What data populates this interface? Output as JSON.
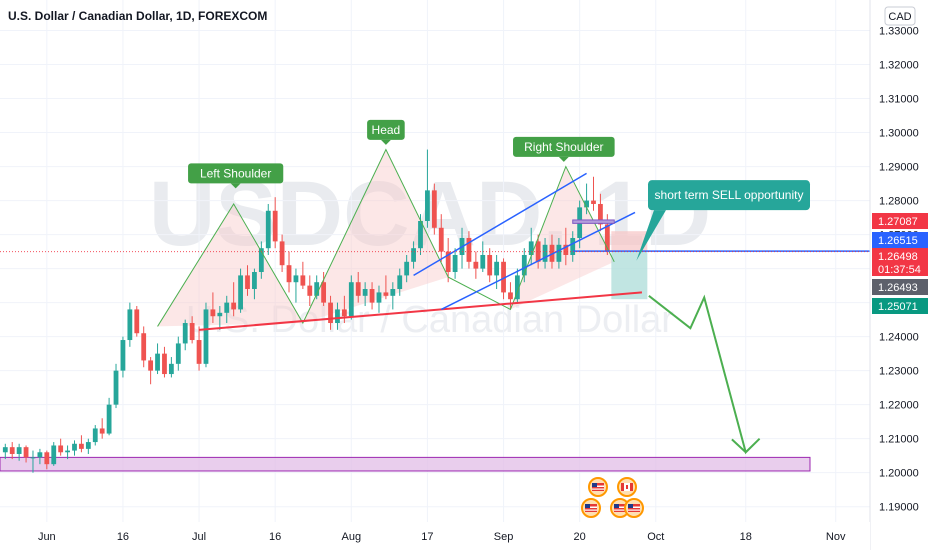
{
  "header": {
    "title": "U.S. Dollar / Canadian Dollar, 1D, FOREXCOM"
  },
  "watermark": {
    "symbol": "USDCAD, 1D",
    "name": "U.S. Dollar / Canadian Dollar"
  },
  "currency_badge": "CAD",
  "colors": {
    "up": "#26a69a",
    "down": "#ef5350",
    "pattern_line": "#4caf50",
    "neckline": "#f23645",
    "channel": "#2962ff",
    "zone_fill": "#e1bee7",
    "zone_border": "#9c27b0",
    "label_bg": "#43a047",
    "callout_bg": "#26a69a"
  },
  "chart_data": {
    "type": "candlestick",
    "symbol": "USDCAD",
    "interval": "1D",
    "ylim": [
      1.1855,
      1.3375
    ],
    "y_ticks": [
      "1.33000",
      "1.32000",
      "1.31000",
      "1.30000",
      "1.29000",
      "1.28000",
      "1.27000",
      "1.26000",
      "1.25000",
      "1.24000",
      "1.23000",
      "1.22000",
      "1.21000",
      "1.20000",
      "1.19000"
    ],
    "x_ticks": [
      {
        "label": "Jun",
        "bar": 6
      },
      {
        "label": "16",
        "bar": 17
      },
      {
        "label": "Jul",
        "bar": 28
      },
      {
        "label": "16",
        "bar": 39
      },
      {
        "label": "Aug",
        "bar": 50
      },
      {
        "label": "17",
        "bar": 61
      },
      {
        "label": "Sep",
        "bar": 72
      },
      {
        "label": "20",
        "bar": 83
      },
      {
        "label": "Oct",
        "bar": 94
      },
      {
        "label": "18",
        "bar": 107
      },
      {
        "label": "Nov",
        "bar": 120
      }
    ],
    "candles": [
      [
        1.206,
        1.2085,
        1.204,
        1.2075
      ],
      [
        1.2075,
        1.209,
        1.204,
        1.2055
      ],
      [
        1.2055,
        1.2085,
        1.2035,
        1.2075
      ],
      [
        1.2075,
        1.208,
        1.203,
        1.2045
      ],
      [
        1.2045,
        1.2065,
        1.2,
        1.2045
      ],
      [
        1.2045,
        1.207,
        1.2025,
        1.206
      ],
      [
        1.206,
        1.2065,
        1.201,
        1.2025
      ],
      [
        1.2025,
        1.209,
        1.202,
        1.208
      ],
      [
        1.208,
        1.21,
        1.205,
        1.206
      ],
      [
        1.206,
        1.208,
        1.204,
        1.2065
      ],
      [
        1.2065,
        1.2095,
        1.205,
        1.2085
      ],
      [
        1.2085,
        1.211,
        1.206,
        1.207
      ],
      [
        1.207,
        1.21,
        1.2055,
        1.209
      ],
      [
        1.209,
        1.214,
        1.208,
        1.213
      ],
      [
        1.213,
        1.216,
        1.21,
        1.2115
      ],
      [
        1.2115,
        1.222,
        1.211,
        1.22
      ],
      [
        1.22,
        1.232,
        1.219,
        1.23
      ],
      [
        1.23,
        1.24,
        1.228,
        1.239
      ],
      [
        1.239,
        1.25,
        1.237,
        1.248
      ],
      [
        1.248,
        1.249,
        1.24,
        1.241
      ],
      [
        1.241,
        1.243,
        1.231,
        1.233
      ],
      [
        1.233,
        1.234,
        1.226,
        1.23
      ],
      [
        1.23,
        1.238,
        1.229,
        1.235
      ],
      [
        1.235,
        1.237,
        1.228,
        1.229
      ],
      [
        1.229,
        1.234,
        1.228,
        1.232
      ],
      [
        1.232,
        1.24,
        1.23,
        1.238
      ],
      [
        1.238,
        1.245,
        1.236,
        1.244
      ],
      [
        1.244,
        1.246,
        1.238,
        1.239
      ],
      [
        1.239,
        1.243,
        1.23,
        1.232
      ],
      [
        1.232,
        1.25,
        1.231,
        1.248
      ],
      [
        1.248,
        1.253,
        1.244,
        1.246
      ],
      [
        1.246,
        1.249,
        1.242,
        1.247
      ],
      [
        1.247,
        1.252,
        1.244,
        1.25
      ],
      [
        1.25,
        1.256,
        1.246,
        1.248
      ],
      [
        1.248,
        1.26,
        1.247,
        1.258
      ],
      [
        1.258,
        1.261,
        1.252,
        1.254
      ],
      [
        1.254,
        1.26,
        1.251,
        1.259
      ],
      [
        1.259,
        1.268,
        1.257,
        1.266
      ],
      [
        1.266,
        1.279,
        1.264,
        1.277
      ],
      [
        1.277,
        1.281,
        1.266,
        1.268
      ],
      [
        1.268,
        1.27,
        1.259,
        1.261
      ],
      [
        1.261,
        1.265,
        1.253,
        1.256
      ],
      [
        1.256,
        1.26,
        1.25,
        1.258
      ],
      [
        1.258,
        1.262,
        1.254,
        1.255
      ],
      [
        1.255,
        1.258,
        1.249,
        1.252
      ],
      [
        1.252,
        1.258,
        1.251,
        1.256
      ],
      [
        1.256,
        1.259,
        1.249,
        1.25
      ],
      [
        1.25,
        1.252,
        1.242,
        1.244
      ],
      [
        1.244,
        1.25,
        1.242,
        1.248
      ],
      [
        1.248,
        1.252,
        1.244,
        1.246
      ],
      [
        1.246,
        1.258,
        1.245,
        1.256
      ],
      [
        1.256,
        1.259,
        1.25,
        1.252
      ],
      [
        1.252,
        1.256,
        1.249,
        1.254
      ],
      [
        1.254,
        1.256,
        1.248,
        1.25
      ],
      [
        1.25,
        1.255,
        1.247,
        1.253
      ],
      [
        1.253,
        1.258,
        1.251,
        1.252
      ],
      [
        1.252,
        1.256,
        1.248,
        1.254
      ],
      [
        1.254,
        1.26,
        1.252,
        1.258
      ],
      [
        1.258,
        1.264,
        1.256,
        1.262
      ],
      [
        1.262,
        1.268,
        1.26,
        1.266
      ],
      [
        1.266,
        1.276,
        1.264,
        1.274
      ],
      [
        1.274,
        1.295,
        1.272,
        1.283
      ],
      [
        1.283,
        1.285,
        1.27,
        1.272
      ],
      [
        1.272,
        1.276,
        1.262,
        1.265
      ],
      [
        1.265,
        1.269,
        1.256,
        1.259
      ],
      [
        1.259,
        1.266,
        1.257,
        1.264
      ],
      [
        1.264,
        1.272,
        1.26,
        1.269
      ],
      [
        1.269,
        1.271,
        1.26,
        1.262
      ],
      [
        1.262,
        1.265,
        1.257,
        1.26
      ],
      [
        1.26,
        1.268,
        1.259,
        1.264
      ],
      [
        1.264,
        1.266,
        1.256,
        1.258
      ],
      [
        1.258,
        1.264,
        1.254,
        1.262
      ],
      [
        1.262,
        1.263,
        1.251,
        1.253
      ],
      [
        1.253,
        1.256,
        1.248,
        1.251
      ],
      [
        1.251,
        1.26,
        1.25,
        1.258
      ],
      [
        1.258,
        1.266,
        1.256,
        1.264
      ],
      [
        1.264,
        1.272,
        1.261,
        1.268
      ],
      [
        1.268,
        1.27,
        1.26,
        1.262
      ],
      [
        1.262,
        1.269,
        1.26,
        1.267
      ],
      [
        1.267,
        1.27,
        1.26,
        1.262
      ],
      [
        1.262,
        1.269,
        1.26,
        1.267
      ],
      [
        1.267,
        1.272,
        1.261,
        1.264
      ],
      [
        1.264,
        1.271,
        1.262,
        1.269
      ],
      [
        1.269,
        1.28,
        1.266,
        1.278
      ],
      [
        1.278,
        1.285,
        1.276,
        1.28
      ],
      [
        1.28,
        1.287,
        1.277,
        1.279
      ],
      [
        1.279,
        1.282,
        1.271,
        1.273
      ],
      [
        1.273,
        1.276,
        1.264,
        1.265
      ]
    ],
    "price_tags": [
      {
        "text": "1.27087",
        "price": 1.27087,
        "color": "#f23645"
      },
      {
        "text": "1.26515",
        "price": 1.26515,
        "color": "#2962ff"
      },
      {
        "text": "1.26498",
        "price": 1.26498,
        "color": "#f23645",
        "sub": "01:37:54"
      },
      {
        "text": "1.26493",
        "price": 1.26493,
        "color": "#5d606b"
      },
      {
        "text": "1.25071",
        "price": 1.25071,
        "color": "#089981"
      }
    ],
    "annotations": {
      "left_shoulder": "Left Shoulder",
      "head": "Head",
      "right_shoulder": "Right Shoulder",
      "callout": "short term SELL opportunity"
    },
    "pattern": {
      "hs_points": [
        [
          22,
          1.243
        ],
        [
          33,
          1.279
        ],
        [
          43,
          1.244
        ],
        [
          55,
          1.295
        ],
        [
          64,
          1.2575
        ],
        [
          73,
          1.248
        ],
        [
          81,
          1.29
        ],
        [
          88,
          1.262
        ]
      ],
      "neckline": [
        [
          28,
          1.242
        ],
        [
          92,
          1.253
        ]
      ],
      "channel_upper": [
        [
          59,
          1.258
        ],
        [
          84,
          1.288
        ]
      ],
      "channel_lower": [
        [
          63,
          1.248
        ],
        [
          91,
          1.2765
        ]
      ],
      "projection": [
        [
          93,
          1.252
        ],
        [
          99,
          1.2425
        ],
        [
          101,
          1.2515
        ],
        [
          107,
          1.206
        ],
        [
          109,
          1.21
        ],
        [
          107,
          1.206
        ],
        [
          105,
          1.2098
        ]
      ],
      "support_zone": [
        1.2005,
        1.2045
      ],
      "resistance_box": [
        [
          82,
          1.2733
        ],
        [
          88,
          1.2743
        ]
      ]
    }
  }
}
